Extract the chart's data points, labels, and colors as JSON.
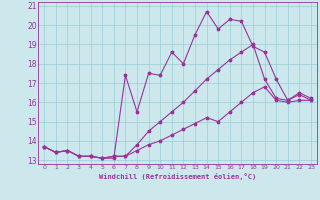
{
  "xlabel": "Windchill (Refroidissement éolien,°C)",
  "xlim": [
    -0.5,
    23.5
  ],
  "ylim": [
    12.8,
    21.2
  ],
  "yticks": [
    13,
    14,
    15,
    16,
    17,
    18,
    19,
    20,
    21
  ],
  "xticks": [
    0,
    1,
    2,
    3,
    4,
    5,
    6,
    7,
    8,
    9,
    10,
    11,
    12,
    13,
    14,
    15,
    16,
    17,
    18,
    19,
    20,
    21,
    22,
    23
  ],
  "background_color": "#cce8ec",
  "grid_color": "#99ccd4",
  "line_color": "#993399",
  "line1": [
    13.7,
    13.4,
    13.5,
    13.2,
    13.2,
    13.1,
    13.1,
    17.4,
    15.5,
    17.5,
    17.4,
    18.6,
    18.0,
    19.5,
    20.7,
    19.8,
    20.3,
    20.2,
    18.9,
    18.6,
    17.2,
    16.1,
    16.5,
    16.2
  ],
  "line2": [
    13.7,
    13.4,
    13.5,
    13.2,
    13.2,
    13.1,
    13.2,
    13.2,
    13.8,
    14.5,
    15.0,
    15.5,
    16.0,
    16.6,
    17.2,
    17.7,
    18.2,
    18.6,
    19.0,
    17.2,
    16.2,
    16.1,
    16.4,
    16.1
  ],
  "line3": [
    13.7,
    13.4,
    13.5,
    13.2,
    13.2,
    13.1,
    13.2,
    13.2,
    13.5,
    13.8,
    14.0,
    14.3,
    14.6,
    14.9,
    15.2,
    15.0,
    15.5,
    16.0,
    16.5,
    16.8,
    16.1,
    16.0,
    16.1,
    16.1
  ]
}
